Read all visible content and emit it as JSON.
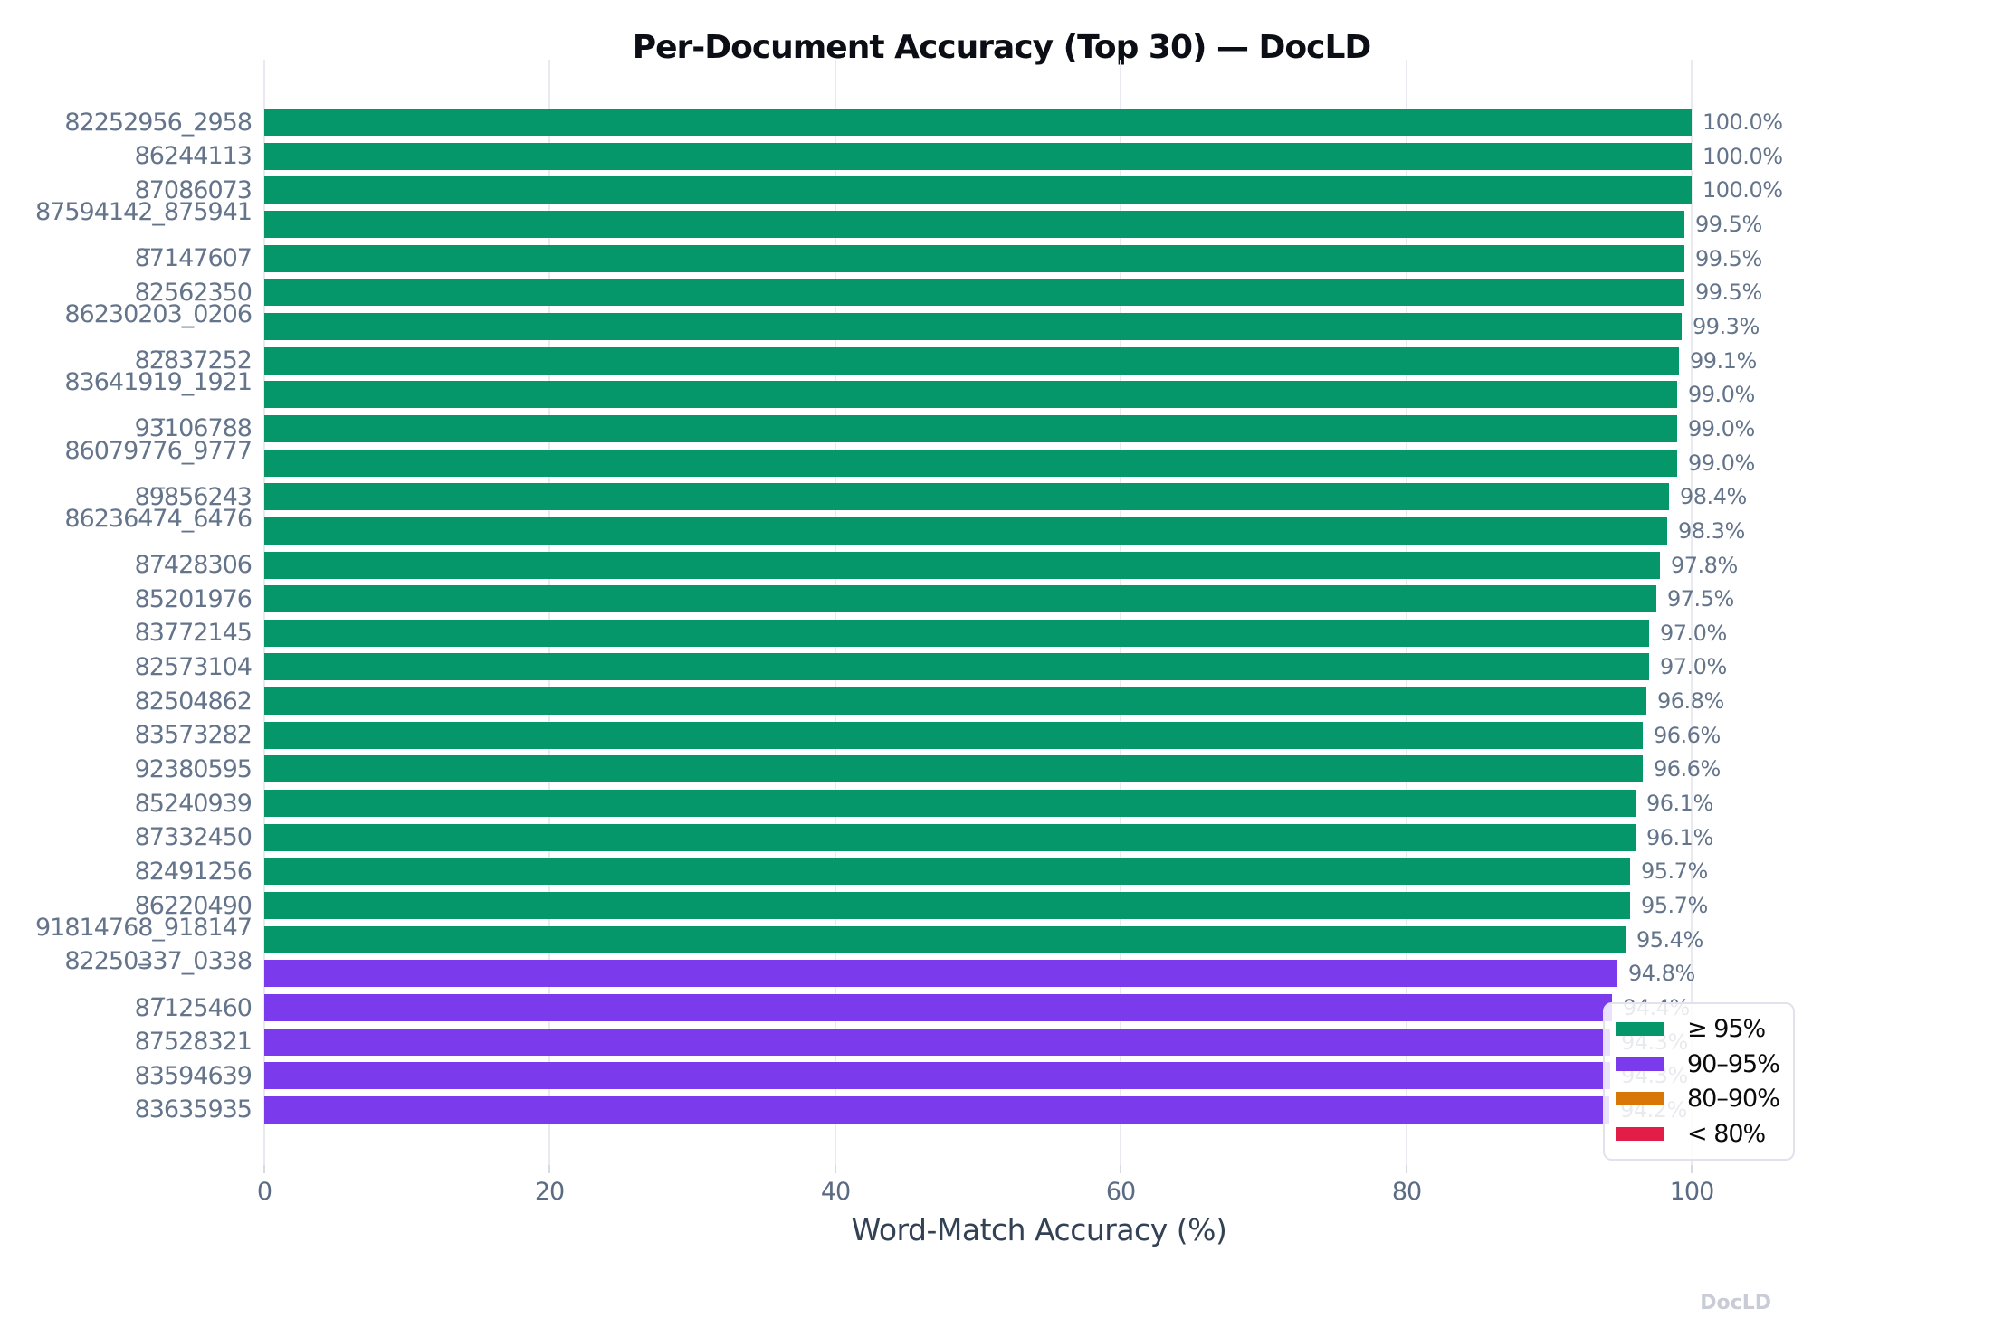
{
  "chart_data": {
    "type": "bar",
    "orientation": "horizontal",
    "title": "Per-Document Accuracy (Top 30) — DocLD",
    "xlabel": "Word-Match Accuracy (%)",
    "ylabel": "",
    "xlim": [
      0,
      110
    ],
    "xticks": [
      0,
      20,
      40,
      60,
      80,
      100
    ],
    "grid": "vertical",
    "watermark": "DocLD",
    "colors": {
      "ge_95": "#059669",
      "90_95": "#7c3aed",
      "80_90": "#d97706",
      "lt_80": "#e11d48",
      "gridline": "#e9e9f0",
      "tick_text": "#64748b",
      "value_text": "#64748b",
      "xlabel_text": "#334155",
      "title_text": "#0b0e14",
      "watermark_text": "#c9ccd6"
    },
    "legend": {
      "position": "lower-right",
      "entries": [
        {
          "label": "≥ 95%",
          "color": "#059669"
        },
        {
          "label": "90–95%",
          "color": "#7c3aed"
        },
        {
          "label": "80–90%",
          "color": "#d97706"
        },
        {
          "label": "< 80%",
          "color": "#e11d48"
        }
      ]
    },
    "bars": [
      {
        "label": "82252956_2958",
        "value": 100.0,
        "value_label": "100.0%",
        "color": "#059669"
      },
      {
        "label": "86244113",
        "value": 100.0,
        "value_label": "100.0%",
        "color": "#059669"
      },
      {
        "label": "87086073",
        "value": 100.0,
        "value_label": "100.0%",
        "color": "#059669"
      },
      {
        "label": "87594142_875941\n_",
        "value": 99.5,
        "value_label": "99.5%",
        "color": "#059669"
      },
      {
        "label": "87147607",
        "value": 99.5,
        "value_label": "99.5%",
        "color": "#059669"
      },
      {
        "label": "82562350",
        "value": 99.5,
        "value_label": "99.5%",
        "color": "#059669"
      },
      {
        "label": "86230203_0206\n_",
        "value": 99.3,
        "value_label": "99.3%",
        "color": "#059669"
      },
      {
        "label": "82837252",
        "value": 99.1,
        "value_label": "99.1%",
        "color": "#059669"
      },
      {
        "label": "83641919_1921\n_",
        "value": 99.0,
        "value_label": "99.0%",
        "color": "#059669"
      },
      {
        "label": "93106788",
        "value": 99.0,
        "value_label": "99.0%",
        "color": "#059669"
      },
      {
        "label": "86079776_9777\n_",
        "value": 99.0,
        "value_label": "99.0%",
        "color": "#059669"
      },
      {
        "label": "89856243",
        "value": 98.4,
        "value_label": "98.4%",
        "color": "#059669"
      },
      {
        "label": "86236474_6476\n_",
        "value": 98.3,
        "value_label": "98.3%",
        "color": "#059669"
      },
      {
        "label": "87428306",
        "value": 97.8,
        "value_label": "97.8%",
        "color": "#059669"
      },
      {
        "label": "85201976",
        "value": 97.5,
        "value_label": "97.5%",
        "color": "#059669"
      },
      {
        "label": "83772145",
        "value": 97.0,
        "value_label": "97.0%",
        "color": "#059669"
      },
      {
        "label": "82573104",
        "value": 97.0,
        "value_label": "97.0%",
        "color": "#059669"
      },
      {
        "label": "82504862",
        "value": 96.8,
        "value_label": "96.8%",
        "color": "#059669"
      },
      {
        "label": "83573282",
        "value": 96.6,
        "value_label": "96.6%",
        "color": "#059669"
      },
      {
        "label": "92380595",
        "value": 96.6,
        "value_label": "96.6%",
        "color": "#059669"
      },
      {
        "label": "85240939",
        "value": 96.1,
        "value_label": "96.1%",
        "color": "#059669"
      },
      {
        "label": "87332450",
        "value": 96.1,
        "value_label": "96.1%",
        "color": "#059669"
      },
      {
        "label": "82491256",
        "value": 95.7,
        "value_label": "95.7%",
        "color": "#059669"
      },
      {
        "label": "86220490",
        "value": 95.7,
        "value_label": "95.7%",
        "color": "#059669"
      },
      {
        "label": "91814768_918147\n_",
        "value": 95.4,
        "value_label": "95.4%",
        "color": "#059669"
      },
      {
        "label": "82250337_0338\n_",
        "value": 94.8,
        "value_label": "94.8%",
        "color": "#7c3aed"
      },
      {
        "label": "87125460",
        "value": 94.4,
        "value_label": "94.4%",
        "color": "#7c3aed"
      },
      {
        "label": "87528321",
        "value": 94.3,
        "value_label": "94.3%",
        "color": "#7c3aed"
      },
      {
        "label": "83594639",
        "value": 94.3,
        "value_label": "94.3%",
        "color": "#7c3aed"
      },
      {
        "label": "83635935",
        "value": 94.2,
        "value_label": "94.2%",
        "color": "#7c3aed"
      }
    ]
  }
}
